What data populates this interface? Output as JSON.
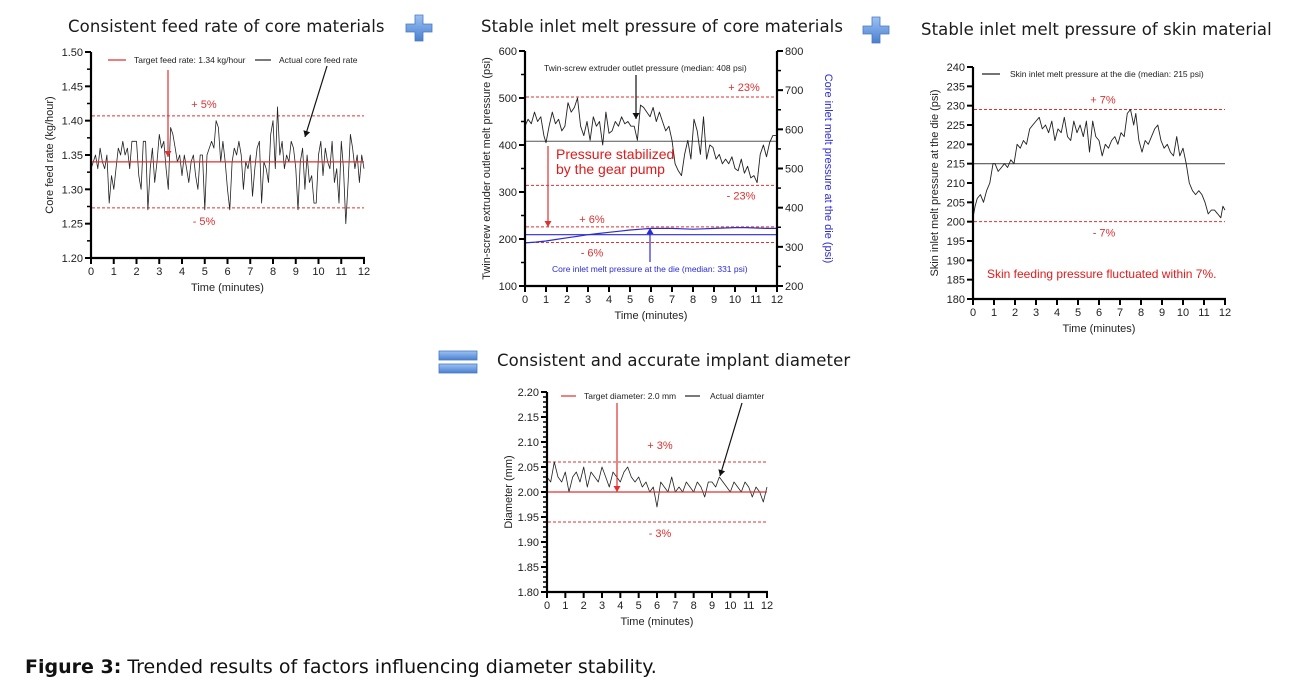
{
  "caption": {
    "label": "Figure 3:",
    "text": " Trended results of factors influencing diameter stability."
  },
  "operators": [
    {
      "icon": "plus-icon",
      "color": "#5b8fd9"
    },
    {
      "icon": "plus-icon",
      "color": "#5b8fd9"
    },
    {
      "icon": "equals-icon",
      "color": "#5b8fd9"
    }
  ],
  "chart_data": [
    {
      "id": "core-feed",
      "type": "line",
      "title": "Consistent feed rate of core materials",
      "xlabel": "Time (minutes)",
      "ylabel": "Core feed rate (kg/hour)",
      "xlim": [
        0,
        12
      ],
      "ylim": [
        1.2,
        1.5
      ],
      "xticks": [
        "0",
        "1",
        "2",
        "3",
        "4",
        "5",
        "6",
        "7",
        "8",
        "9",
        "10",
        "11",
        "12"
      ],
      "yticks": [
        "1.20",
        "1.25",
        "1.30",
        "1.35",
        "1.40",
        "1.45",
        "1.50"
      ],
      "legend": [
        "Target feed rate: 1.34 kg/hour",
        "Actual core feed rate"
      ],
      "target": 1.34,
      "bands": [
        {
          "label": "+ 5%",
          "value": 1.407
        },
        {
          "label": "- 5%",
          "value": 1.273
        }
      ],
      "series": [
        {
          "name": "Actual core feed rate",
          "color": "#222222",
          "x": [
            0,
            0.1,
            0.2,
            0.3,
            0.4,
            0.5,
            0.6,
            0.7,
            0.8,
            0.9,
            1.0,
            1.1,
            1.2,
            1.3,
            1.4,
            1.5,
            1.6,
            1.7,
            1.8,
            1.9,
            2.0,
            2.1,
            2.2,
            2.3,
            2.4,
            2.5,
            2.6,
            2.7,
            2.8,
            2.9,
            3.0,
            3.1,
            3.2,
            3.3,
            3.4,
            3.5,
            3.6,
            3.7,
            3.8,
            3.9,
            4.0,
            4.1,
            4.2,
            4.3,
            4.4,
            4.5,
            4.6,
            4.7,
            4.8,
            4.9,
            5.0,
            5.1,
            5.2,
            5.3,
            5.4,
            5.5,
            5.6,
            5.7,
            5.8,
            5.9,
            6.0,
            6.1,
            6.2,
            6.3,
            6.4,
            6.5,
            6.6,
            6.7,
            6.8,
            6.9,
            7.0,
            7.1,
            7.2,
            7.3,
            7.4,
            7.5,
            7.6,
            7.7,
            7.8,
            7.9,
            8.0,
            8.1,
            8.2,
            8.3,
            8.4,
            8.5,
            8.6,
            8.7,
            8.8,
            8.9,
            9.0,
            9.1,
            9.2,
            9.3,
            9.4,
            9.5,
            9.6,
            9.7,
            9.8,
            9.9,
            10.0,
            10.1,
            10.2,
            10.3,
            10.4,
            10.5,
            10.6,
            10.7,
            10.8,
            10.9,
            11.0,
            11.1,
            11.2,
            11.3,
            11.4,
            11.5,
            11.6,
            11.7,
            11.8,
            11.9,
            12.0
          ],
          "values": [
            1.33,
            1.34,
            1.35,
            1.33,
            1.36,
            1.34,
            1.33,
            1.35,
            1.28,
            1.32,
            1.3,
            1.33,
            1.36,
            1.35,
            1.37,
            1.35,
            1.36,
            1.33,
            1.37,
            1.37,
            1.37,
            1.32,
            1.3,
            1.37,
            1.37,
            1.27,
            1.33,
            1.36,
            1.31,
            1.34,
            1.38,
            1.36,
            1.37,
            1.33,
            1.3,
            1.39,
            1.38,
            1.36,
            1.34,
            1.35,
            1.32,
            1.35,
            1.33,
            1.31,
            1.34,
            1.35,
            1.32,
            1.3,
            1.35,
            1.35,
            1.27,
            1.35,
            1.36,
            1.37,
            1.36,
            1.4,
            1.39,
            1.34,
            1.37,
            1.34,
            1.3,
            1.27,
            1.34,
            1.36,
            1.35,
            1.37,
            1.35,
            1.3,
            1.34,
            1.33,
            1.35,
            1.29,
            1.33,
            1.36,
            1.37,
            1.28,
            1.34,
            1.33,
            1.31,
            1.38,
            1.4,
            1.33,
            1.42,
            1.35,
            1.37,
            1.33,
            1.35,
            1.34,
            1.37,
            1.36,
            1.33,
            1.27,
            1.34,
            1.36,
            1.3,
            1.35,
            1.31,
            1.32,
            1.28,
            1.28,
            1.35,
            1.37,
            1.32,
            1.36,
            1.34,
            1.33,
            1.37,
            1.31,
            1.33,
            1.28,
            1.37,
            1.33,
            1.25,
            1.31,
            1.38,
            1.36,
            1.33,
            1.35,
            1.31,
            1.35,
            1.33
          ]
        }
      ]
    },
    {
      "id": "core-pressure",
      "type": "line",
      "title": "Stable inlet melt pressure of core materials",
      "xlabel": "Time (minutes)",
      "ylabel": "Twin-screw extruder outlet melt pressure (psi)",
      "ylabel_right": "Core inlet melt pressure at the die (psi)",
      "xlim": [
        0,
        12
      ],
      "ylim": [
        100,
        600
      ],
      "ylim_right": [
        200,
        800
      ],
      "xticks": [
        "0",
        "1",
        "2",
        "3",
        "4",
        "5",
        "6",
        "7",
        "8",
        "9",
        "10",
        "11",
        "12"
      ],
      "yticks": [
        "100",
        "200",
        "300",
        "400",
        "500",
        "600"
      ],
      "yticks_right": [
        "200",
        "300",
        "400",
        "500",
        "600",
        "700",
        "800"
      ],
      "annotations": {
        "outlet_label": "Twin-screw extruder outlet pressure (median: 408 psi)",
        "inlet_label": "Core inlet melt pressure at the die (median: 331 psi)",
        "note_line1": "Pressure stabilized",
        "note_line2": "by the gear pump"
      },
      "outlet_median": 408,
      "inlet_median": 331,
      "bands_outlet": [
        {
          "label": "+ 23%",
          "value": 502
        },
        {
          "label": "- 23%",
          "value": 314
        }
      ],
      "bands_inlet_right": [
        {
          "label": "+ 6%",
          "value": 351
        },
        {
          "label": "- 6%",
          "value": 311
        }
      ],
      "series": [
        {
          "name": "Twin-screw extruder outlet pressure",
          "axis": "left",
          "color": "#222222",
          "x": [
            0,
            0.15,
            0.3,
            0.45,
            0.6,
            0.75,
            0.9,
            1.0,
            1.15,
            1.3,
            1.45,
            1.6,
            1.75,
            1.9,
            2.05,
            2.2,
            2.35,
            2.5,
            2.65,
            2.8,
            2.95,
            3.1,
            3.25,
            3.4,
            3.55,
            3.7,
            3.85,
            4.0,
            4.15,
            4.3,
            4.45,
            4.6,
            4.75,
            4.9,
            5.05,
            5.2,
            5.35,
            5.5,
            5.65,
            5.8,
            5.95,
            6.1,
            6.25,
            6.4,
            6.55,
            6.7,
            6.85,
            7.0,
            7.15,
            7.3,
            7.45,
            7.6,
            7.75,
            7.9,
            8.05,
            8.2,
            8.35,
            8.5,
            8.65,
            8.8,
            8.95,
            9.1,
            9.25,
            9.4,
            9.55,
            9.7,
            9.85,
            10.0,
            10.15,
            10.3,
            10.45,
            10.6,
            10.75,
            10.9,
            11.05,
            11.2,
            11.35,
            11.5,
            11.65,
            11.8,
            12.0
          ],
          "values": [
            440,
            455,
            445,
            470,
            450,
            460,
            420,
            405,
            440,
            470,
            445,
            455,
            430,
            440,
            490,
            470,
            480,
            500,
            440,
            420,
            450,
            410,
            460,
            440,
            450,
            400,
            470,
            425,
            430,
            450,
            440,
            460,
            445,
            450,
            440,
            440,
            410,
            485,
            480,
            470,
            460,
            480,
            450,
            470,
            450,
            430,
            440,
            410,
            360,
            345,
            335,
            380,
            410,
            370,
            455,
            430,
            380,
            460,
            370,
            400,
            395,
            370,
            380,
            360,
            370,
            360,
            375,
            350,
            345,
            370,
            340,
            355,
            330,
            335,
            320,
            380,
            400,
            375,
            405,
            420,
            420
          ]
        },
        {
          "name": "Core inlet melt pressure at the die",
          "axis": "right",
          "color": "#2b2bd6",
          "x": [
            0,
            0.5,
            1.0,
            1.5,
            2.0,
            2.5,
            3.0,
            3.5,
            4.0,
            4.5,
            5.0,
            5.5,
            6.0,
            6.5,
            7.0,
            7.5,
            8.0,
            8.5,
            9.0,
            9.5,
            10.0,
            10.5,
            11.0,
            11.5,
            12.0
          ],
          "values": [
            310,
            312,
            315,
            319,
            323,
            327,
            331,
            334,
            337,
            340,
            343,
            345,
            347,
            347,
            347,
            346,
            345,
            346,
            347,
            348,
            349,
            349,
            348,
            347,
            347
          ]
        }
      ]
    },
    {
      "id": "skin-pressure",
      "type": "line",
      "title": "Stable inlet melt pressure of skin material",
      "xlabel": "Time (minutes)",
      "ylabel": "Skin inlet melt pressure at the die (psi)",
      "xlim": [
        0,
        12
      ],
      "ylim": [
        180,
        240
      ],
      "xticks": [
        "0",
        "1",
        "2",
        "3",
        "4",
        "5",
        "6",
        "7",
        "8",
        "9",
        "10",
        "11",
        "12"
      ],
      "yticks": [
        "180",
        "185",
        "190",
        "195",
        "200",
        "205",
        "210",
        "215",
        "220",
        "225",
        "230",
        "235",
        "240"
      ],
      "legend": [
        "Skin inlet melt pressure at the die (median: 215 psi)"
      ],
      "note": "Skin feeding pressure fluctuated within 7%.",
      "median": 215,
      "bands": [
        {
          "label": "+ 7%",
          "value": 229
        },
        {
          "label": "- 7%",
          "value": 200
        }
      ],
      "series": [
        {
          "name": "Skin inlet melt pressure at the die",
          "color": "#222222",
          "x": [
            0,
            0.1,
            0.2,
            0.35,
            0.5,
            0.65,
            0.8,
            0.95,
            1.05,
            1.2,
            1.35,
            1.5,
            1.65,
            1.8,
            1.95,
            2.1,
            2.25,
            2.4,
            2.55,
            2.7,
            2.85,
            3.0,
            3.15,
            3.3,
            3.45,
            3.6,
            3.75,
            3.9,
            4.05,
            4.2,
            4.35,
            4.5,
            4.65,
            4.8,
            4.95,
            5.1,
            5.25,
            5.4,
            5.55,
            5.7,
            5.85,
            6.0,
            6.15,
            6.3,
            6.45,
            6.6,
            6.75,
            6.9,
            7.05,
            7.2,
            7.35,
            7.5,
            7.65,
            7.75,
            7.9,
            8.05,
            8.2,
            8.35,
            8.5,
            8.65,
            8.8,
            8.95,
            9.1,
            9.25,
            9.4,
            9.55,
            9.7,
            9.85,
            10.0,
            10.15,
            10.3,
            10.45,
            10.6,
            10.75,
            10.9,
            11.05,
            11.2,
            11.35,
            11.5,
            11.65,
            11.8,
            11.9,
            12.0
          ],
          "values": [
            201,
            204,
            206,
            207,
            205,
            208,
            210,
            215,
            215,
            213,
            214,
            215,
            214,
            216,
            215,
            220,
            219,
            221,
            220,
            224,
            225,
            226,
            227,
            224,
            225,
            223,
            226,
            221,
            224,
            223,
            227,
            222,
            221,
            226,
            223,
            225,
            222,
            226,
            218,
            226,
            222,
            221,
            217,
            220,
            219,
            221,
            222,
            220,
            223,
            222,
            228,
            229,
            225,
            228,
            221,
            218,
            221,
            220,
            222,
            224,
            225,
            221,
            219,
            220,
            218,
            217,
            222,
            217,
            219,
            215,
            210,
            208,
            207,
            208,
            207,
            205,
            202,
            203,
            203,
            202,
            201,
            204,
            203
          ]
        }
      ]
    },
    {
      "id": "diameter",
      "type": "line",
      "title": "Consistent and accurate implant diameter",
      "xlabel": "Time (minutes)",
      "ylabel": "Diameter (mm)",
      "xlim": [
        0,
        12
      ],
      "ylim": [
        1.8,
        2.2
      ],
      "xticks": [
        "0",
        "1",
        "2",
        "3",
        "4",
        "5",
        "6",
        "7",
        "8",
        "9",
        "10",
        "11",
        "12"
      ],
      "yticks": [
        "1.80",
        "1.85",
        "1.90",
        "1.95",
        "2.00",
        "2.05",
        "2.10",
        "2.15",
        "2.20"
      ],
      "legend": [
        "Target diameter: 2.0 mm",
        "Actual diamter"
      ],
      "target": 2.0,
      "bands": [
        {
          "label": "+ 3%",
          "value": 2.06
        },
        {
          "label": "- 3%",
          "value": 1.94
        }
      ],
      "series": [
        {
          "name": "Actual diamter",
          "color": "#222222",
          "x": [
            0,
            0.2,
            0.4,
            0.6,
            0.8,
            1.0,
            1.2,
            1.4,
            1.6,
            1.8,
            2.0,
            2.2,
            2.4,
            2.6,
            2.8,
            3.0,
            3.2,
            3.4,
            3.6,
            3.8,
            4.0,
            4.2,
            4.4,
            4.6,
            4.8,
            5.0,
            5.2,
            5.4,
            5.6,
            5.8,
            6.0,
            6.2,
            6.4,
            6.6,
            6.8,
            7.0,
            7.2,
            7.4,
            7.6,
            7.8,
            8.0,
            8.2,
            8.4,
            8.6,
            8.8,
            9.0,
            9.2,
            9.4,
            9.6,
            9.8,
            10.0,
            10.2,
            10.4,
            10.6,
            10.8,
            11.0,
            11.2,
            11.4,
            11.6,
            11.8,
            12.0
          ],
          "values": [
            2.03,
            2.02,
            2.06,
            2.03,
            2.02,
            2.04,
            2.0,
            2.03,
            2.04,
            2.02,
            2.05,
            2.01,
            2.04,
            2.03,
            2.02,
            2.05,
            2.03,
            2.01,
            2.04,
            2.03,
            2.02,
            2.04,
            2.05,
            2.03,
            2.02,
            2.03,
            2.01,
            2.02,
            2.0,
            2.01,
            1.97,
            2.02,
            2.01,
            2.0,
            2.03,
            2.0,
            2.01,
            2.0,
            2.02,
            2.01,
            2.0,
            2.02,
            2.01,
            1.99,
            2.02,
            2.02,
            2.01,
            2.03,
            2.02,
            2.01,
            2.0,
            2.02,
            2.01,
            2.0,
            2.02,
            2.01,
            1.99,
            2.01,
            2.0,
            1.98,
            2.01
          ]
        }
      ]
    }
  ]
}
